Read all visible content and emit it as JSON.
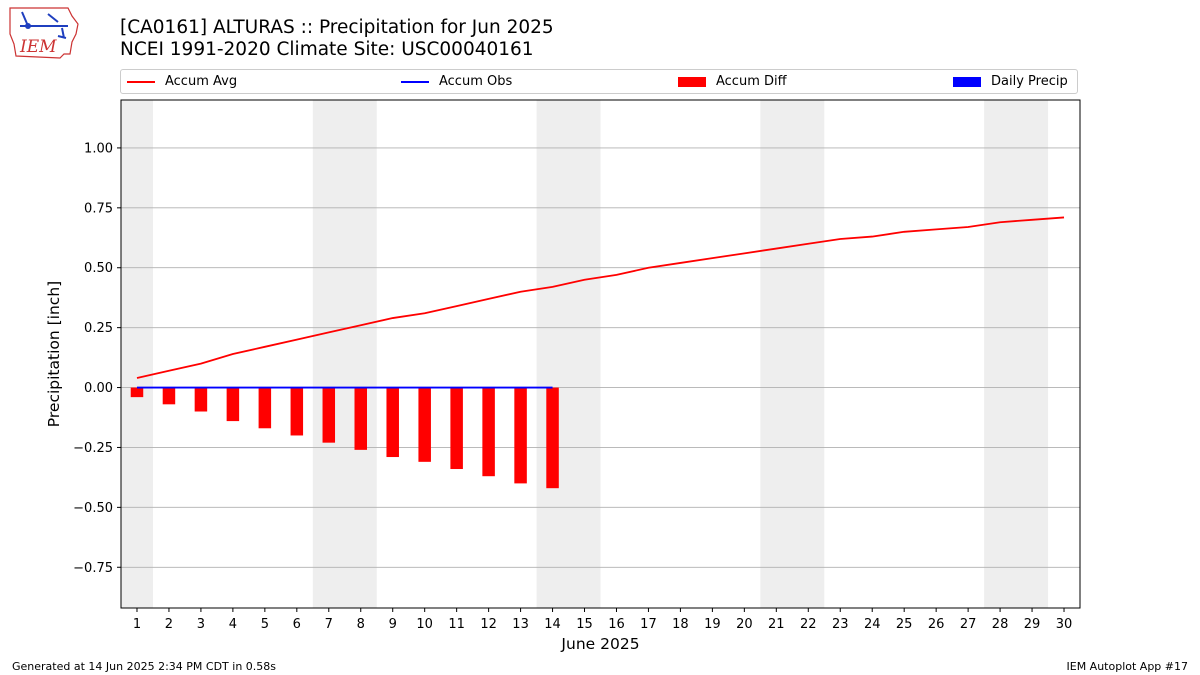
{
  "logo": {
    "text": "IEM"
  },
  "title": {
    "line1": "[CA0161] ALTURAS :: Precipitation for Jun 2025",
    "line2": "NCEI 1991-2020 Climate Site: USC00040161"
  },
  "legend": [
    {
      "label": "Accum Avg",
      "color": "#ff0000",
      "kind": "line"
    },
    {
      "label": "Accum Obs",
      "color": "#0000ff",
      "kind": "line"
    },
    {
      "label": "Accum Diff",
      "color": "#ff0000",
      "kind": "box"
    },
    {
      "label": "Daily Precip",
      "color": "#0000ff",
      "kind": "box"
    }
  ],
  "chart_data": {
    "type": "bar",
    "xlabel": "June 2025",
    "ylabel": "Precipitation [inch]",
    "xlim": [
      0.5,
      30.5
    ],
    "ylim": [
      -0.92,
      1.2
    ],
    "yticks": [
      -0.75,
      -0.5,
      -0.25,
      0.0,
      0.25,
      0.5,
      0.75,
      1.0
    ],
    "ytick_labels": [
      "−0.75",
      "−0.50",
      "−0.25",
      "0.00",
      "0.25",
      "0.50",
      "0.75",
      "1.00"
    ],
    "xticks": [
      1,
      2,
      3,
      4,
      5,
      6,
      7,
      8,
      9,
      10,
      11,
      12,
      13,
      14,
      15,
      16,
      17,
      18,
      19,
      20,
      21,
      22,
      23,
      24,
      25,
      26,
      27,
      28,
      29,
      30
    ],
    "grid": "horizontal",
    "weekend_shading": [
      [
        0.5,
        1.5
      ],
      [
        6.5,
        8.5
      ],
      [
        13.5,
        15.5
      ],
      [
        20.5,
        22.5
      ],
      [
        27.5,
        29.5
      ]
    ],
    "series": [
      {
        "name": "Accum Avg",
        "type": "line",
        "color": "#ff0000",
        "x": [
          1,
          2,
          3,
          4,
          5,
          6,
          7,
          8,
          9,
          10,
          11,
          12,
          13,
          14,
          15,
          16,
          17,
          18,
          19,
          20,
          21,
          22,
          23,
          24,
          25,
          26,
          27,
          28,
          29,
          30
        ],
        "values": [
          0.04,
          0.07,
          0.1,
          0.14,
          0.17,
          0.2,
          0.23,
          0.26,
          0.29,
          0.31,
          0.34,
          0.37,
          0.4,
          0.42,
          0.45,
          0.47,
          0.5,
          0.52,
          0.54,
          0.56,
          0.58,
          0.6,
          0.62,
          0.63,
          0.65,
          0.66,
          0.67,
          0.69,
          0.7,
          0.71
        ]
      },
      {
        "name": "Accum Obs",
        "type": "line",
        "color": "#0000ff",
        "x": [
          1,
          2,
          3,
          4,
          5,
          6,
          7,
          8,
          9,
          10,
          11,
          12,
          13,
          14
        ],
        "values": [
          0,
          0,
          0,
          0,
          0,
          0,
          0,
          0,
          0,
          0,
          0,
          0,
          0,
          0
        ]
      },
      {
        "name": "Accum Diff",
        "type": "bar",
        "color": "#ff0000",
        "x": [
          1,
          2,
          3,
          4,
          5,
          6,
          7,
          8,
          9,
          10,
          11,
          12,
          13,
          14
        ],
        "values": [
          -0.04,
          -0.07,
          -0.1,
          -0.14,
          -0.17,
          -0.2,
          -0.23,
          -0.26,
          -0.29,
          -0.31,
          -0.34,
          -0.37,
          -0.4,
          -0.42
        ]
      },
      {
        "name": "Daily Precip",
        "type": "bar",
        "color": "#0000ff",
        "x": [
          1,
          2,
          3,
          4,
          5,
          6,
          7,
          8,
          9,
          10,
          11,
          12,
          13,
          14
        ],
        "values": [
          0,
          0,
          0,
          0,
          0,
          0,
          0,
          0,
          0,
          0,
          0,
          0,
          0,
          0
        ]
      }
    ]
  },
  "footer": {
    "left": "Generated at 14 Jun 2025 2:34 PM CDT in 0.58s",
    "right": "IEM Autoplot App #17"
  }
}
